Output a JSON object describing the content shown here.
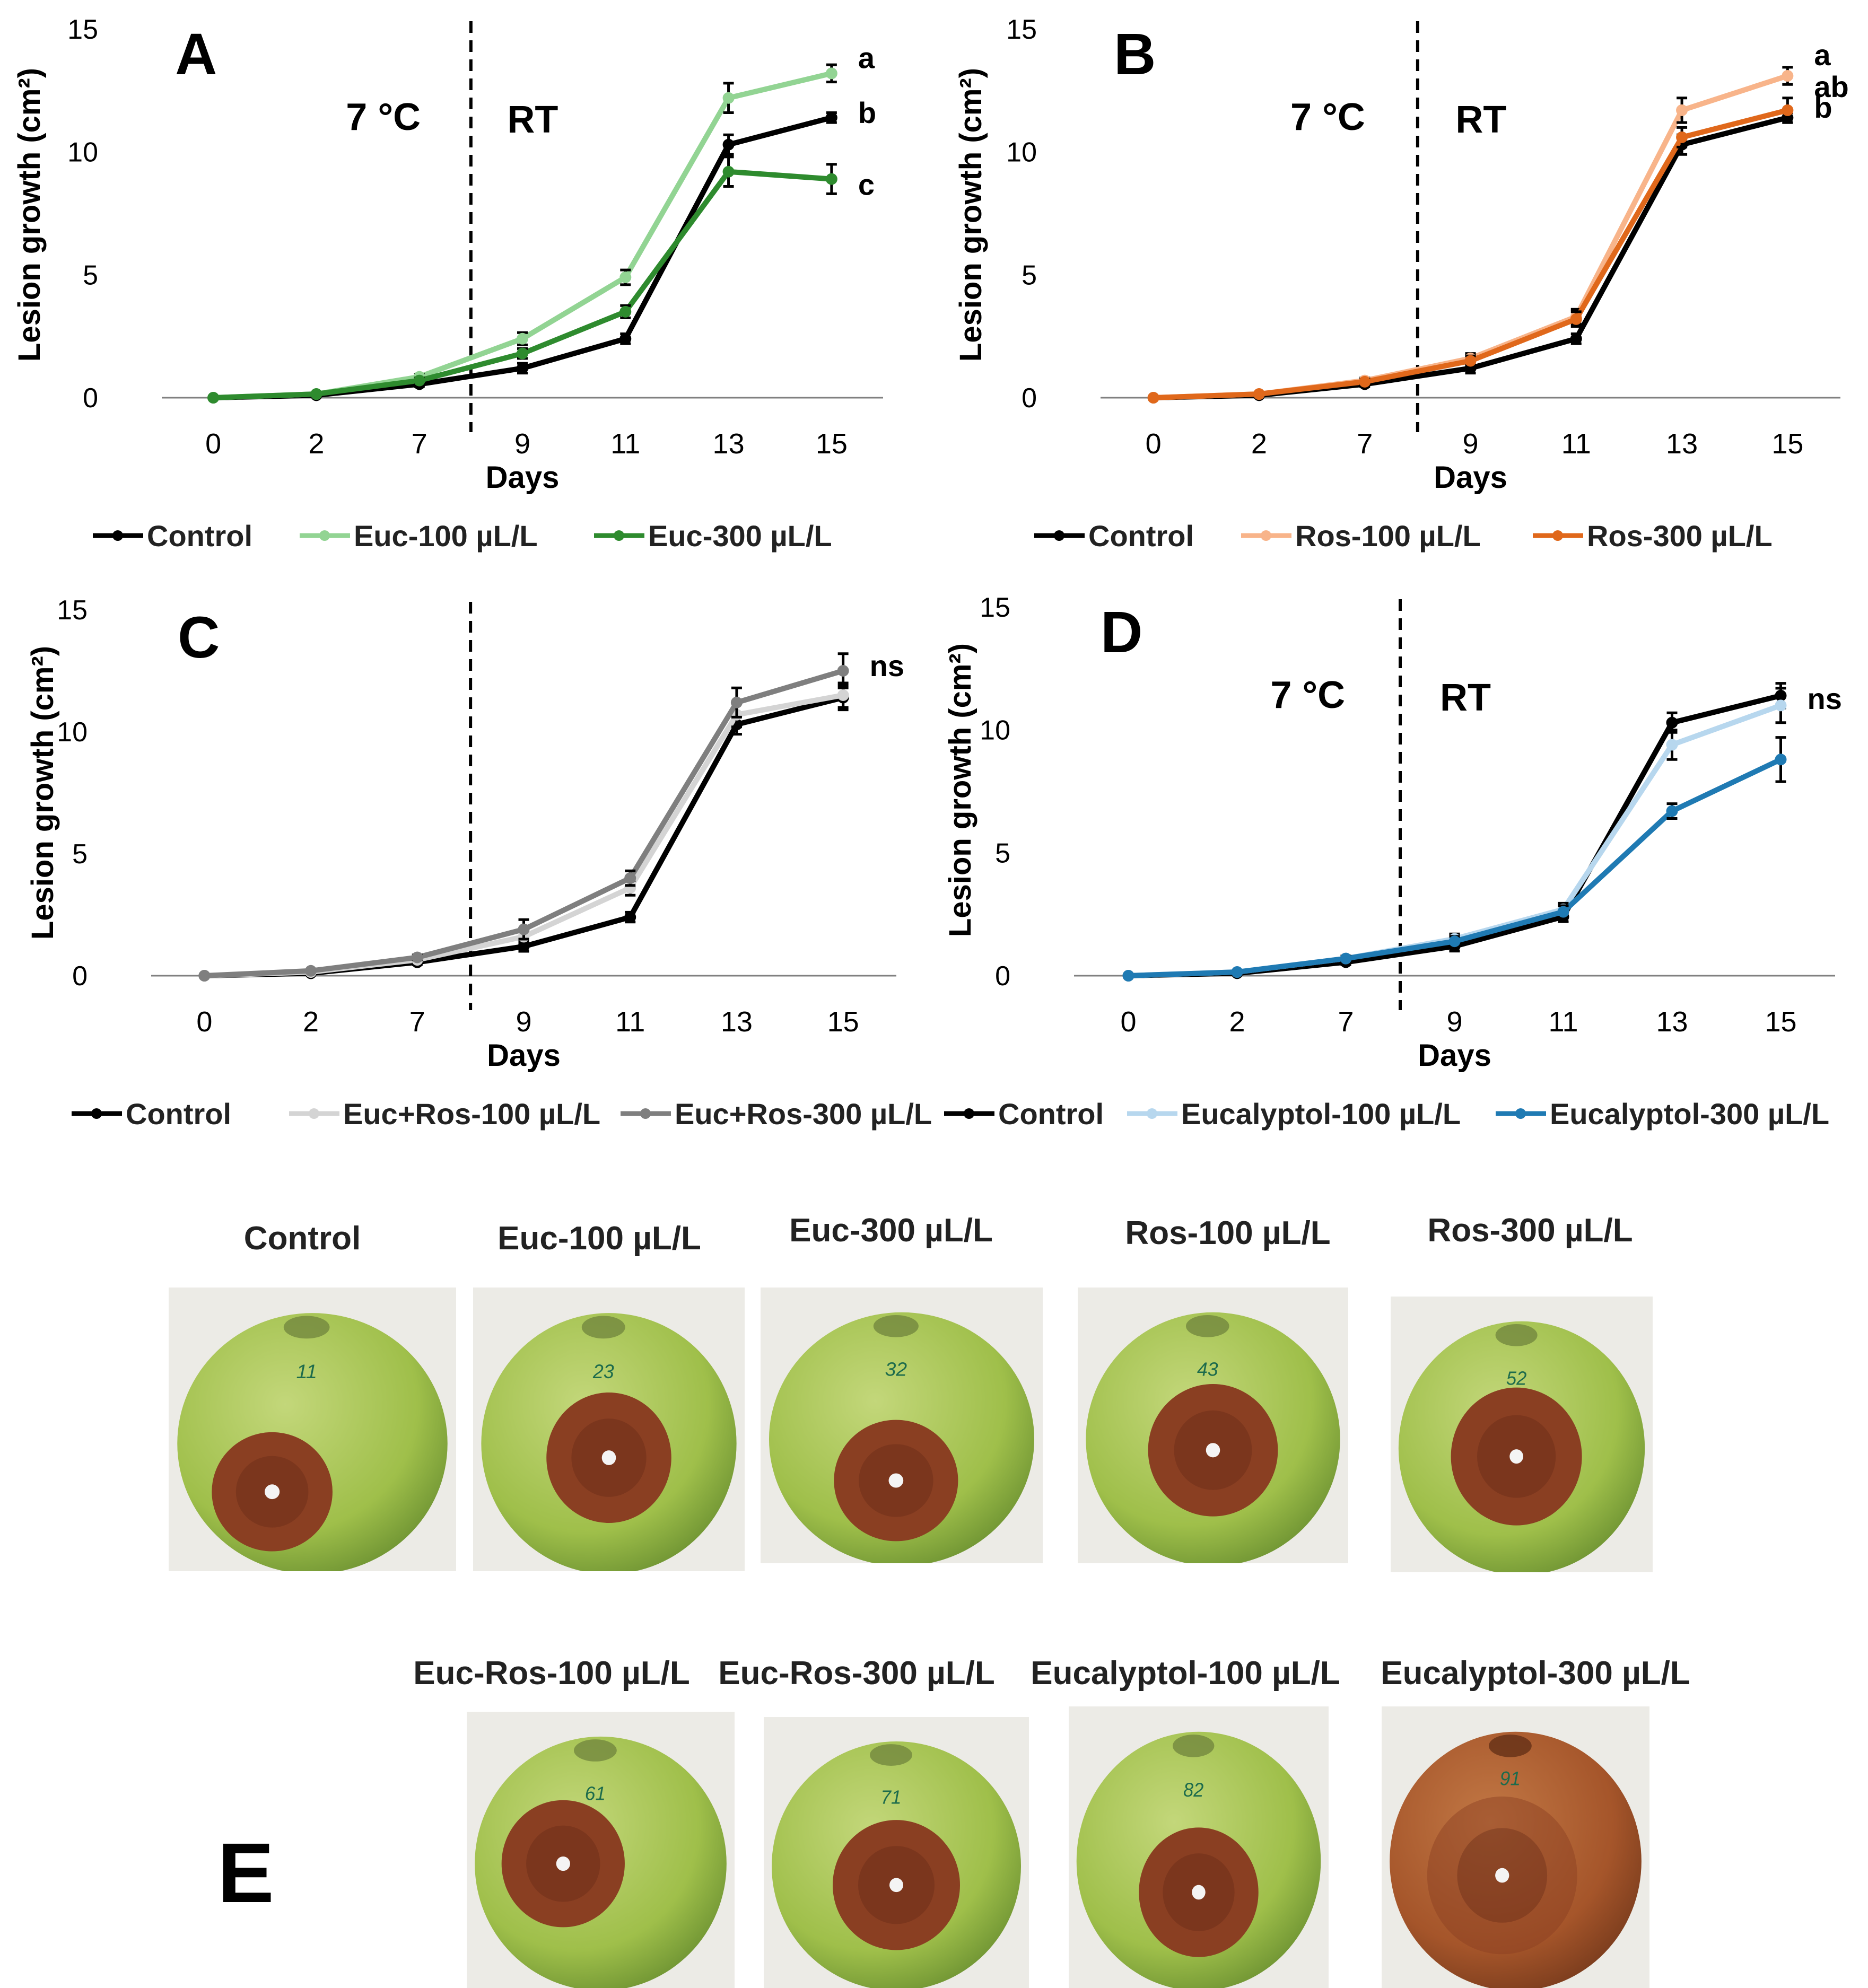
{
  "chart_data": [
    {
      "type": "line",
      "panel_label": "A",
      "xlabel": "Days",
      "ylabel": "Lesion growth (cm²)",
      "categories": [
        "0",
        "2",
        "7",
        "9",
        "11",
        "13",
        "15"
      ],
      "ylim": [
        0,
        15
      ],
      "yticks": [
        "0",
        "5",
        "10",
        "15"
      ],
      "grid": false,
      "legend_position": "bottom",
      "annotations": {
        "cold": "7 °C",
        "warm": "RT"
      },
      "significance": [
        "a",
        "b",
        "c"
      ],
      "series": [
        {
          "name": "Control",
          "color": "#000000",
          "values": [
            0,
            0.1,
            0.55,
            1.2,
            2.4,
            10.3,
            11.4
          ],
          "errors": [
            0,
            0.05,
            0.1,
            0.2,
            0.2,
            0.4,
            0.2
          ]
        },
        {
          "name": "Euc-100 µL/L",
          "color": "#92d493",
          "values": [
            0,
            0.15,
            0.85,
            2.4,
            4.9,
            12.2,
            13.2
          ],
          "errors": [
            0,
            0.05,
            0.1,
            0.25,
            0.3,
            0.6,
            0.35
          ]
        },
        {
          "name": "Euc-300 µL/L",
          "color": "#2e8b2e",
          "values": [
            0,
            0.15,
            0.7,
            1.8,
            3.5,
            9.2,
            8.9
          ],
          "errors": [
            0,
            0.05,
            0.1,
            0.2,
            0.25,
            0.6,
            0.6
          ]
        }
      ]
    },
    {
      "type": "line",
      "panel_label": "B",
      "xlabel": "Days",
      "ylabel": "Lesion growth (cm²)",
      "categories": [
        "0",
        "2",
        "7",
        "9",
        "11",
        "13",
        "15"
      ],
      "ylim": [
        0,
        15
      ],
      "yticks": [
        "0",
        "5",
        "10",
        "15"
      ],
      "grid": false,
      "legend_position": "bottom",
      "annotations": {
        "cold": "7 °C",
        "warm": "RT"
      },
      "significance": [
        "a",
        "ab",
        "b"
      ],
      "series": [
        {
          "name": "Control",
          "color": "#000000",
          "values": [
            0,
            0.1,
            0.55,
            1.2,
            2.4,
            10.3,
            11.4
          ],
          "errors": [
            0,
            0.05,
            0.1,
            0.2,
            0.2,
            0.4,
            0.2
          ]
        },
        {
          "name": "Ros-100 µL/L",
          "color": "#f8b48a",
          "values": [
            0,
            0.15,
            0.7,
            1.6,
            3.3,
            11.7,
            13.1
          ],
          "errors": [
            0,
            0.05,
            0.1,
            0.2,
            0.3,
            0.5,
            0.35
          ]
        },
        {
          "name": "Ros-300 µL/L",
          "color": "#e0681b",
          "values": [
            0,
            0.15,
            0.65,
            1.5,
            3.2,
            10.6,
            11.7
          ],
          "errors": [
            0,
            0.05,
            0.1,
            0.2,
            0.3,
            0.4,
            0.5
          ]
        }
      ]
    },
    {
      "type": "line",
      "panel_label": "C",
      "xlabel": "Days",
      "ylabel": "Lesion growth (cm²)",
      "categories": [
        "0",
        "2",
        "7",
        "9",
        "11",
        "13",
        "15"
      ],
      "ylim": [
        0,
        15
      ],
      "yticks": [
        "0",
        "5",
        "10",
        "15"
      ],
      "grid": false,
      "legend_position": "bottom",
      "annotations": {},
      "significance": [
        "ns"
      ],
      "series": [
        {
          "name": "Control",
          "color": "#000000",
          "values": [
            0,
            0.1,
            0.55,
            1.2,
            2.4,
            10.3,
            11.4
          ],
          "errors": [
            0,
            0.05,
            0.1,
            0.2,
            0.2,
            0.4,
            0.5
          ]
        },
        {
          "name": "Euc+Ros-100 µL/L",
          "color": "#d4d4d4",
          "values": [
            0,
            0.15,
            0.65,
            1.6,
            3.6,
            10.7,
            11.5
          ],
          "errors": [
            0,
            0.05,
            0.1,
            0.25,
            0.3,
            0.5,
            0.5
          ]
        },
        {
          "name": "Euc+Ros-300 µL/L",
          "color": "#7f7f7f",
          "values": [
            0,
            0.2,
            0.75,
            1.9,
            4.0,
            11.2,
            12.5
          ],
          "errors": [
            0,
            0.05,
            0.1,
            0.4,
            0.3,
            0.6,
            0.7
          ]
        }
      ]
    },
    {
      "type": "line",
      "panel_label": "D",
      "xlabel": "Days",
      "ylabel": "Lesion growth (cm²)",
      "categories": [
        "0",
        "2",
        "7",
        "9",
        "11",
        "13",
        "15"
      ],
      "ylim": [
        0,
        15
      ],
      "yticks": [
        "0",
        "5",
        "10",
        "15"
      ],
      "grid": false,
      "legend_position": "bottom",
      "annotations": {
        "cold": "7 °C",
        "warm": "RT"
      },
      "significance": [
        "ns"
      ],
      "series": [
        {
          "name": "Control",
          "color": "#000000",
          "values": [
            0,
            0.1,
            0.55,
            1.2,
            2.4,
            10.3,
            11.4
          ],
          "errors": [
            0,
            0.05,
            0.1,
            0.2,
            0.2,
            0.4,
            0.5
          ]
        },
        {
          "name": "Eucalyptol-100 µL/L",
          "color": "#b7d7ee",
          "values": [
            0,
            0.15,
            0.7,
            1.5,
            2.7,
            9.4,
            11.0
          ],
          "errors": [
            0,
            0.05,
            0.1,
            0.2,
            0.25,
            0.6,
            0.7
          ]
        },
        {
          "name": "Eucalyptol-300 µL/L",
          "color": "#1f7ab3",
          "values": [
            0,
            0.15,
            0.7,
            1.4,
            2.6,
            6.7,
            8.8
          ],
          "errors": [
            0,
            0.05,
            0.1,
            0.2,
            0.25,
            0.3,
            0.9
          ]
        }
      ]
    }
  ],
  "photos": {
    "panel_label": "E",
    "row1": [
      {
        "caption": "Control",
        "note": "11"
      },
      {
        "caption": "Euc-100 µL/L",
        "note": "23"
      },
      {
        "caption": "Euc-300 µL/L",
        "note": "32"
      },
      {
        "caption": "Ros-100 µL/L",
        "note": "43"
      },
      {
        "caption": "Ros-300 µL/L",
        "note": "52"
      }
    ],
    "row2": [
      {
        "caption": "Euc-Ros-100 µL/L",
        "note": "61"
      },
      {
        "caption": "Euc-Ros-300 µL/L",
        "note": "71"
      },
      {
        "caption": "Eucalyptol-100 µL/L",
        "note": "82"
      },
      {
        "caption": "Eucalyptol-300 µL/L",
        "note": "91"
      }
    ]
  },
  "colors": {
    "apple_light": "#c3d77a",
    "apple_mid": "#9fbf4a",
    "apple_dark": "#6f9433",
    "lesion": "#8a3f22",
    "lesion_dark": "#5f2614",
    "red_apple": "#a5552a"
  }
}
